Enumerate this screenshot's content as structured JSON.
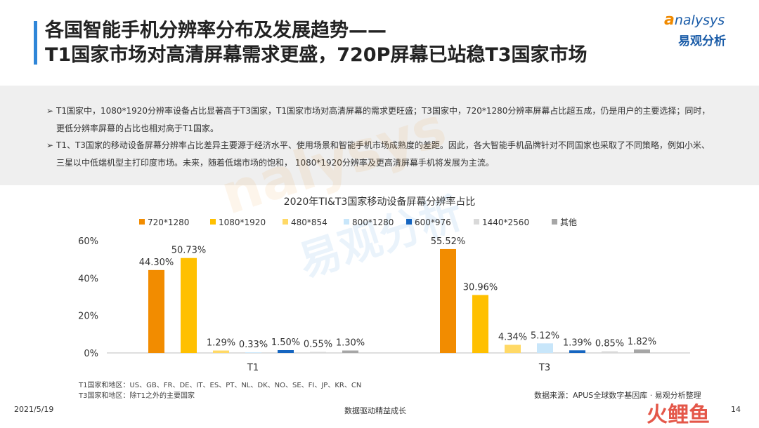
{
  "header": {
    "title_line1": "各国智能手机分辨率分布及发展趋势——",
    "title_line2": "T1国家市场对高清屏幕需求更盛，720P屏幕已站稳T3国家市场"
  },
  "logo": {
    "en_first": "a",
    "en_rest": "nalysys",
    "cn": "易观分析"
  },
  "notes": [
    "T1国家中，1080*1920分辨率设备占比显著高于T3国家，T1国家市场对高清屏幕的需求更旺盛；T3国家中，720*1280分辨率屏幕占比超五成，仍是用户的主要选择；同时，更低分辨率屏幕的占比也相对高于T1国家。",
    "T1、T3国家的移动设备屏幕分辨率占比差异主要源于经济水平、使用场景和智能手机市场成熟度的差距。因此，各大智能手机品牌针对不同国家也采取了不同策略，例如小米、三星以中低端机型主打印度市场。未来，随着低端市场的饱和， 1080*1920分辨率及更高清屏幕手机将发展为主流。"
  ],
  "note_marker": "➢",
  "watermark": {
    "en": "nalysys",
    "cn": "易观分析"
  },
  "chart_data": {
    "type": "bar",
    "title": "2020年TI&T3国家移动设备屏幕分辨率占比",
    "categories": [
      "T1",
      "T3"
    ],
    "series": [
      {
        "name": "720*1280",
        "color": "#f28c00",
        "values": [
          44.3,
          55.52
        ],
        "labels": [
          "44.30%",
          "55.52%"
        ]
      },
      {
        "name": "1080*1920",
        "color": "#ffc000",
        "values": [
          50.73,
          30.96
        ],
        "labels": [
          "50.73%",
          "30.96%"
        ]
      },
      {
        "name": "480*854",
        "color": "#ffd966",
        "values": [
          1.29,
          4.34
        ],
        "labels": [
          "1.29%",
          "4.34%"
        ]
      },
      {
        "name": "800*1280",
        "color": "#c8e6fa",
        "values": [
          0.33,
          5.12
        ],
        "labels": [
          "0.33%",
          "5.12%"
        ]
      },
      {
        "name": "600*976",
        "color": "#1565c0",
        "values": [
          1.5,
          1.39
        ],
        "labels": [
          "1.50%",
          "1.39%"
        ]
      },
      {
        "name": "1440*2560",
        "color": "#d9d9d9",
        "values": [
          0.55,
          0.85
        ],
        "labels": [
          "0.55%",
          "0.85%"
        ]
      },
      {
        "name": "其他",
        "color": "#a6a6a6",
        "values": [
          1.3,
          1.82
        ],
        "labels": [
          "1.30%",
          "1.82%"
        ]
      }
    ],
    "ylim": [
      0,
      60
    ],
    "yticks": [
      "0%",
      "20%",
      "40%",
      "60%"
    ],
    "ytick_values": [
      0,
      20,
      40,
      60
    ],
    "grid": false,
    "legend": "top"
  },
  "footnotes": {
    "t1": "T1国家和地区：US、GB、FR、DE、IT、ES、PT、NL、DK、NO、SE、FI、JP、KR、CN",
    "t3": "T3国家和地区：除T1之外的主要国家"
  },
  "source": "数据来源：APUS全球数字基因库 · 易观分析整理",
  "footer": {
    "date": "2021/5/19",
    "slogan": "数据驱动精益成长",
    "page": "14",
    "brand": "火鲤鱼"
  }
}
